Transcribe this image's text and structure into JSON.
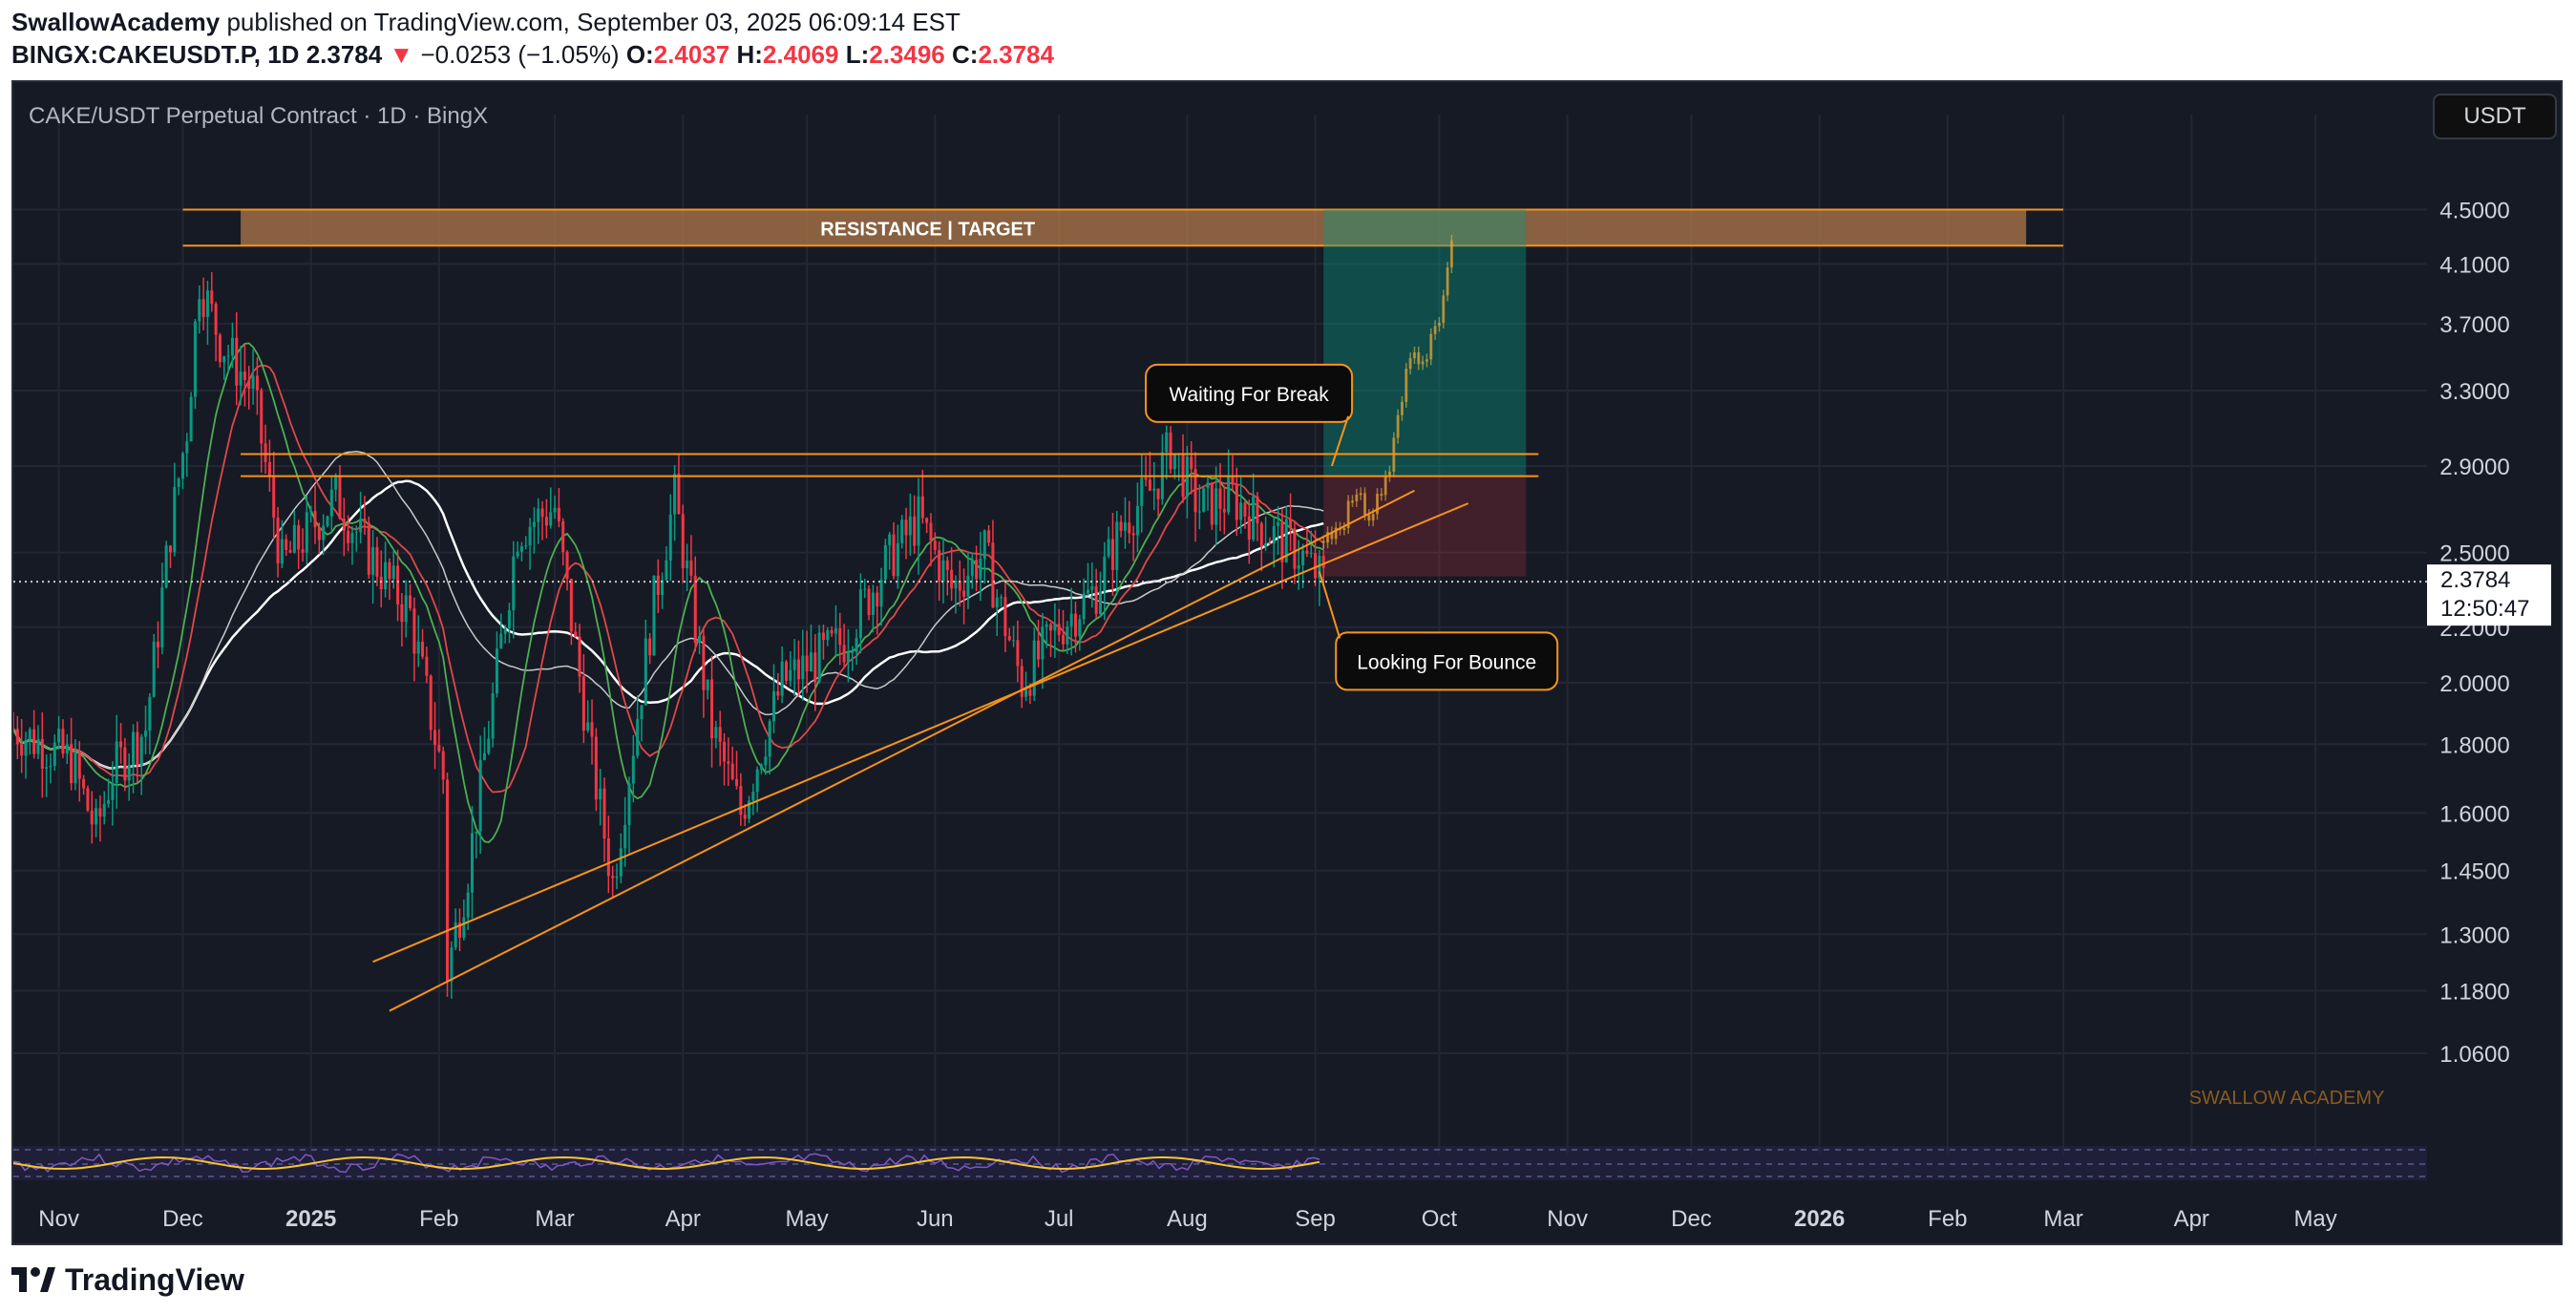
{
  "header": {
    "author": "SwallowAcademy",
    "published_text": "published on TradingView.com, September 03, 2025 06:09:14 EST",
    "symbol": "BINGX:CAKEUSDT.P, 1D",
    "last": "2.3784",
    "change": "−0.0253 (−1.05%)",
    "open_label": "O:",
    "open": "2.4037",
    "high_label": "H:",
    "high": "2.4069",
    "low_label": "L:",
    "low": "2.3496",
    "close_label": "C:",
    "close": "2.3784"
  },
  "chart": {
    "title": "CAKE/USDT Perpetual Contract · 1D · BingX",
    "unit_button": "USDT",
    "last_price": "2.3784",
    "countdown": "12:50:47",
    "watermark": "SWALLOW ACADEMY",
    "resistance_label": "RESISTANCE | TARGET",
    "annotations": [
      "Waiting For Break",
      "Looking For Bounce"
    ]
  },
  "footer": {
    "brand": "TradingView"
  },
  "colors": {
    "background": "#161a25",
    "up": "#089981",
    "down": "#f23645",
    "accent": "#f7931a",
    "ma_white": "#ffffff",
    "ma_red": "#e04848",
    "ma_green": "#4caf50"
  },
  "chart_data": {
    "type": "candlestick",
    "title": "CAKE/USDT Perpetual Contract · 1D · BingX",
    "y_scale": "log",
    "ylim": [
      0.95,
      4.8
    ],
    "y_ticks": [
      "4.5000",
      "4.1000",
      "3.7000",
      "3.3000",
      "2.9000",
      "2.5000",
      "2.2000",
      "2.0000",
      "1.8000",
      "1.6000",
      "1.4500",
      "1.3000",
      "1.1800",
      "1.0600"
    ],
    "x_ticks": [
      "Nov",
      "Dec",
      "2025",
      "Feb",
      "Mar",
      "Apr",
      "May",
      "Jun",
      "Jul",
      "Aug",
      "Sep",
      "Oct",
      "Nov",
      "Dec",
      "2026",
      "Feb",
      "Mar",
      "Apr",
      "May"
    ],
    "x_range": [
      "2024-10-21",
      "2026-05-28"
    ],
    "price_path": [
      [
        "2024-10-21",
        1.85
      ],
      [
        "2024-11-04",
        1.75
      ],
      [
        "2024-11-10",
        1.55
      ],
      [
        "2024-11-14",
        1.72
      ],
      [
        "2024-11-22",
        1.85
      ],
      [
        "2024-11-28",
        2.6
      ],
      [
        "2024-12-02",
        3.1
      ],
      [
        "2024-12-05",
        4.0
      ],
      [
        "2024-12-10",
        3.6
      ],
      [
        "2024-12-18",
        3.3
      ],
      [
        "2024-12-25",
        2.45
      ],
      [
        "2025-01-07",
        2.75
      ],
      [
        "2025-01-15",
        2.5
      ],
      [
        "2025-01-25",
        2.25
      ],
      [
        "2025-02-02",
        1.7
      ],
      [
        "2025-02-03",
        1.22
      ],
      [
        "2025-02-08",
        1.45
      ],
      [
        "2025-02-20",
        2.6
      ],
      [
        "2025-03-01",
        2.7
      ],
      [
        "2025-03-10",
        1.75
      ],
      [
        "2025-03-15",
        1.42
      ],
      [
        "2025-03-25",
        2.3
      ],
      [
        "2025-03-30",
        2.75
      ],
      [
        "2025-04-08",
        1.85
      ],
      [
        "2025-04-15",
        1.6
      ],
      [
        "2025-04-25",
        2.0
      ],
      [
        "2025-05-10",
        2.15
      ],
      [
        "2025-05-20",
        2.45
      ],
      [
        "2025-05-28",
        2.65
      ],
      [
        "2025-06-05",
        2.35
      ],
      [
        "2025-06-13",
        2.5
      ],
      [
        "2025-06-22",
        2.0
      ],
      [
        "2025-07-01",
        2.2
      ],
      [
        "2025-07-10",
        2.35
      ],
      [
        "2025-07-17",
        2.65
      ],
      [
        "2025-07-24",
        2.8
      ],
      [
        "2025-07-28",
        3.0
      ],
      [
        "2025-08-04",
        2.7
      ],
      [
        "2025-08-12",
        2.75
      ],
      [
        "2025-08-20",
        2.6
      ],
      [
        "2025-08-28",
        2.5
      ],
      [
        "2025-09-03",
        2.3784
      ]
    ],
    "projection": [
      [
        "2025-09-03",
        2.55
      ],
      [
        "2025-09-10",
        2.72
      ],
      [
        "2025-09-15",
        2.68
      ],
      [
        "2025-09-19",
        2.9
      ],
      [
        "2025-09-24",
        3.5
      ],
      [
        "2025-09-30",
        3.6
      ],
      [
        "2025-10-04",
        4.2
      ]
    ],
    "resistance_zone": [
      4.23,
      4.5
    ],
    "horizontal_levels": [
      2.85,
      2.96
    ],
    "trend_support": [
      [
        "2025-01-20",
        1.14,
        "2025-09-25",
        2.78
      ],
      [
        "2025-01-16",
        1.24,
        "2025-10-08",
        2.72
      ]
    ],
    "long_position": {
      "entry": 2.85,
      "target": 4.5,
      "stop": 2.4,
      "start": "2025-09-03",
      "end": "2025-10-22"
    },
    "moving_averages": [
      "white",
      "red",
      "green"
    ],
    "grid": true
  }
}
